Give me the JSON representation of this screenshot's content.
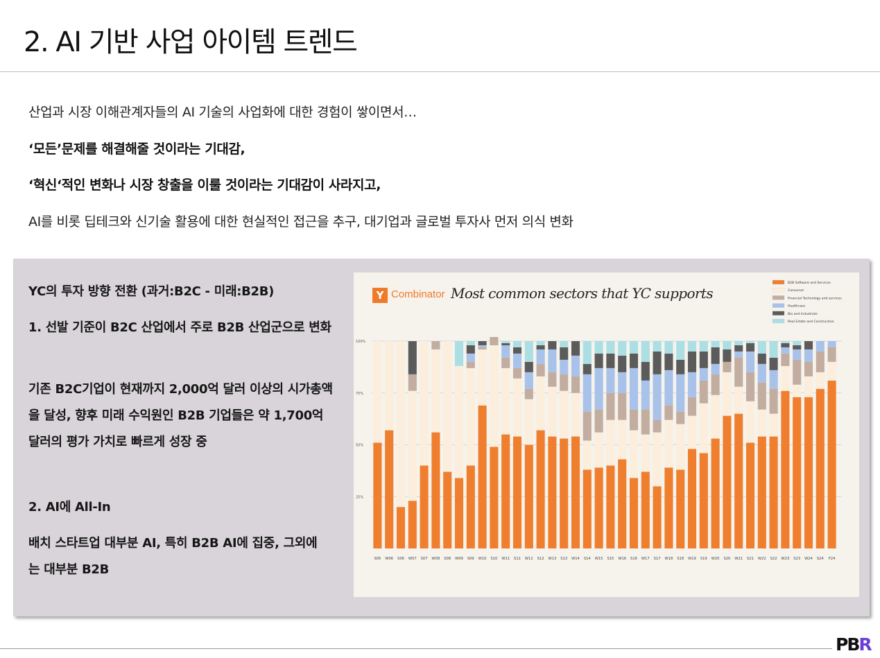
{
  "title": "2. AI 기반 사업 아이템 트렌드",
  "intro": {
    "line1": "산업과 시장 이해관계자들의 AI 기술의 사업화에 대한 경험이 쌓이면서…",
    "line2": "‘모든’문제를 해결해줄 것이라는 기대감,",
    "line3": "‘혁신‘적인 변화나 시장 창출을 이룰 것이라는 기대감이 사라지고,",
    "line4": "AI를 비롯 딥테크와 신기술 활용에 대한 현실적인 접근을 추구, 대기업과 글로벌 투자사 먼저 의식 변화"
  },
  "panel": {
    "heading": "YC의 투자 방향 전환 (과거:B2C - 미래:B2B)",
    "point1_title": "1. 선발 기준이 B2C 산업에서 주로 B2B 산업군으로 변화",
    "point1_body": "기존 B2C기업이 현재까지 2,000억 달러 이상의 시가총액을 달성, 향후 미래 수익원인 B2B 기업들은 약 1,700억 달러의 평가 가치로 빠르게 성장 중",
    "point2_title": "2. AI에 All-In",
    "point2_body": "배치 스타트업 대부분 AI, 특히 B2B AI에 집중, 그외에는 대부분 B2B"
  },
  "yc": {
    "logo": "Y",
    "name": "Combinator",
    "chart_title": "Most common sectors that YC supports"
  },
  "colors": {
    "b2b": "#ef7f2e",
    "consumer": "#fbeedd",
    "fintech": "#c2ada0",
    "healthcare": "#a8c2ea",
    "bio": "#5b5b5b",
    "realestate": "#abdfe3"
  },
  "chart_data": {
    "type": "bar",
    "stacked": true,
    "title": "Most common sectors that YC supports",
    "ylim": [
      0,
      100
    ],
    "yticks": [
      "100%",
      "75%",
      "50%",
      "25%"
    ],
    "legend_position": "top-right",
    "categories": [
      "S05",
      "W06",
      "S06",
      "W07",
      "S07",
      "W08",
      "S08",
      "W09",
      "S09",
      "W10",
      "S10",
      "W11",
      "S11",
      "W12",
      "S12",
      "W13",
      "S13",
      "W14",
      "S14",
      "W15",
      "S15",
      "W16",
      "S16",
      "W17",
      "S17",
      "W18",
      "S18",
      "W19",
      "S19",
      "W20",
      "S20",
      "W21",
      "S21",
      "W22",
      "S22",
      "W23",
      "S23",
      "W24",
      "S24",
      "F24"
    ],
    "series": [
      {
        "name": "B2B Software and Services",
        "color": "#ef7f2e",
        "values": [
          51,
          57,
          20,
          23,
          40,
          56,
          37,
          34,
          40,
          69,
          49,
          55,
          54,
          50,
          57,
          54,
          53,
          54,
          38,
          39,
          40,
          43,
          34,
          37,
          30,
          39,
          38,
          48,
          46,
          53,
          64,
          65,
          51,
          54,
          54,
          76,
          73,
          73,
          77,
          81
        ]
      },
      {
        "name": "Consumer",
        "color": "#fbeedd",
        "values": [
          49,
          43,
          80,
          53,
          60,
          40,
          63,
          54,
          47,
          27,
          49,
          32,
          28,
          22,
          26,
          24,
          23,
          21,
          14,
          17,
          22,
          19,
          23,
          18,
          26,
          23,
          22,
          16,
          24,
          21,
          21,
          13,
          20,
          13,
          11,
          12,
          6,
          10,
          8,
          9
        ]
      },
      {
        "name": "Financial Technology and services",
        "color": "#c2ada0",
        "values": [
          0,
          0,
          0,
          8,
          0,
          4,
          0,
          0,
          3,
          1,
          4,
          5,
          5,
          5,
          6,
          7,
          8,
          8,
          14,
          11,
          13,
          13,
          10,
          12,
          6,
          7,
          6,
          9,
          11,
          10,
          5,
          14,
          14,
          13,
          12,
          6,
          12,
          7,
          10,
          7
        ]
      },
      {
        "name": "Healthcare",
        "color": "#a8c2ea",
        "values": [
          0,
          0,
          0,
          0,
          0,
          0,
          0,
          0,
          4,
          1,
          0,
          6,
          7,
          8,
          7,
          11,
          7,
          10,
          18,
          20,
          12,
          10,
          20,
          14,
          22,
          17,
          18,
          12,
          6,
          5,
          0,
          3,
          10,
          9,
          9,
          3,
          5,
          6,
          5,
          3
        ]
      },
      {
        "name": "Bio and Industrials",
        "color": "#5b5b5b",
        "values": [
          0,
          0,
          0,
          16,
          0,
          0,
          0,
          0,
          4,
          2,
          0,
          1,
          3,
          5,
          2,
          4,
          6,
          7,
          5,
          7,
          7,
          8,
          7,
          9,
          11,
          8,
          7,
          10,
          8,
          8,
          6,
          3,
          4,
          5,
          6,
          2,
          2,
          4,
          0,
          0
        ]
      },
      {
        "name": "Real Estate and Construction",
        "color": "#abdfe3",
        "values": [
          0,
          0,
          0,
          0,
          0,
          0,
          0,
          12,
          2,
          0,
          0,
          1,
          3,
          10,
          2,
          0,
          3,
          0,
          11,
          6,
          6,
          7,
          6,
          10,
          5,
          6,
          9,
          5,
          5,
          3,
          4,
          2,
          1,
          6,
          8,
          1,
          2,
          0,
          0,
          0
        ]
      }
    ]
  },
  "brand": {
    "mark_main": "PB",
    "mark_accent": "R"
  }
}
